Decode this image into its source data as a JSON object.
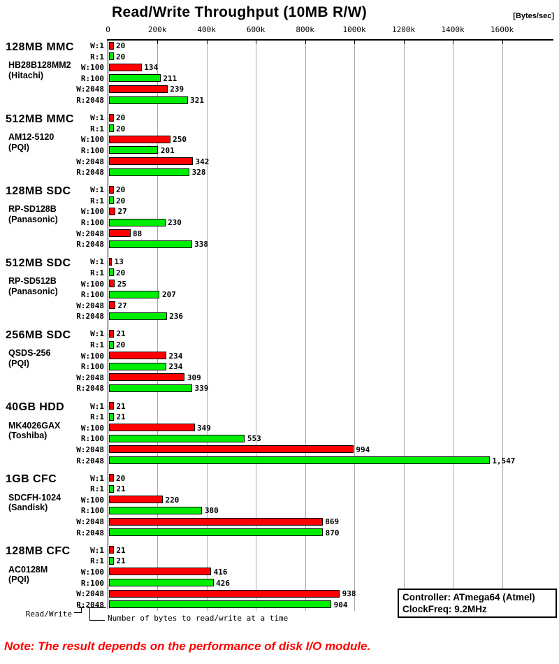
{
  "title": "Read/Write Throughput (10MB R/W)",
  "chart_data": {
    "type": "bar",
    "orientation": "horizontal",
    "title": "Read/Write Throughput (10MB R/W)",
    "x_axis": {
      "unit": "[Bytes/sec]",
      "ticks": [
        "0",
        "200k",
        "400k",
        "600k",
        "800k",
        "1000k",
        "1200k",
        "1400k",
        "1600k"
      ],
      "range_k": [
        0,
        1600
      ],
      "gridlines": true
    },
    "bar_labels": [
      "W:1",
      "R:1",
      "W:100",
      "R:100",
      "W:2048",
      "R:2048"
    ],
    "series_colors": {
      "write": "#ff0000",
      "read": "#00ee00"
    },
    "groups": [
      {
        "name": "128MB MMC",
        "model": "HB28B128MM2",
        "maker": "(Hitachi)",
        "values_k": [
          20,
          20,
          134,
          211,
          239,
          321
        ]
      },
      {
        "name": "512MB MMC",
        "model": "AM12-5120",
        "maker": "(PQI)",
        "values_k": [
          20,
          20,
          250,
          201,
          342,
          328
        ]
      },
      {
        "name": "128MB SDC",
        "model": "RP-SD128B",
        "maker": "(Panasonic)",
        "values_k": [
          20,
          20,
          27,
          230,
          88,
          338
        ]
      },
      {
        "name": "512MB SDC",
        "model": "RP-SD512B",
        "maker": "(Panasonic)",
        "values_k": [
          13,
          20,
          25,
          207,
          27,
          236
        ]
      },
      {
        "name": "256MB SDC",
        "model": "QSDS-256",
        "maker": "(PQI)",
        "values_k": [
          21,
          20,
          234,
          234,
          309,
          339
        ]
      },
      {
        "name": "40GB HDD",
        "model": "MK4026GAX",
        "maker": "(Toshiba)",
        "values_k": [
          21,
          21,
          349,
          553,
          994,
          1547
        ]
      },
      {
        "name": "1GB CFC",
        "model": "SDCFH-1024",
        "maker": "(Sandisk)",
        "values_k": [
          20,
          21,
          220,
          380,
          869,
          870
        ]
      },
      {
        "name": "128MB CFC",
        "model": "AC0128M",
        "maker": "(PQI)",
        "values_k": [
          21,
          21,
          416,
          426,
          938,
          904
        ]
      }
    ]
  },
  "legend": {
    "read_write": "Read/Write",
    "bytes_note": "Number of bytes to read/write at a time"
  },
  "info_box": {
    "controller": "Controller: ATmega64 (Atmel)",
    "clock": "ClockFreq: 9.2MHz"
  },
  "note": {
    "text": "Note: The result depends on the performance of disk I/O module.",
    "color": "#ff0000"
  }
}
